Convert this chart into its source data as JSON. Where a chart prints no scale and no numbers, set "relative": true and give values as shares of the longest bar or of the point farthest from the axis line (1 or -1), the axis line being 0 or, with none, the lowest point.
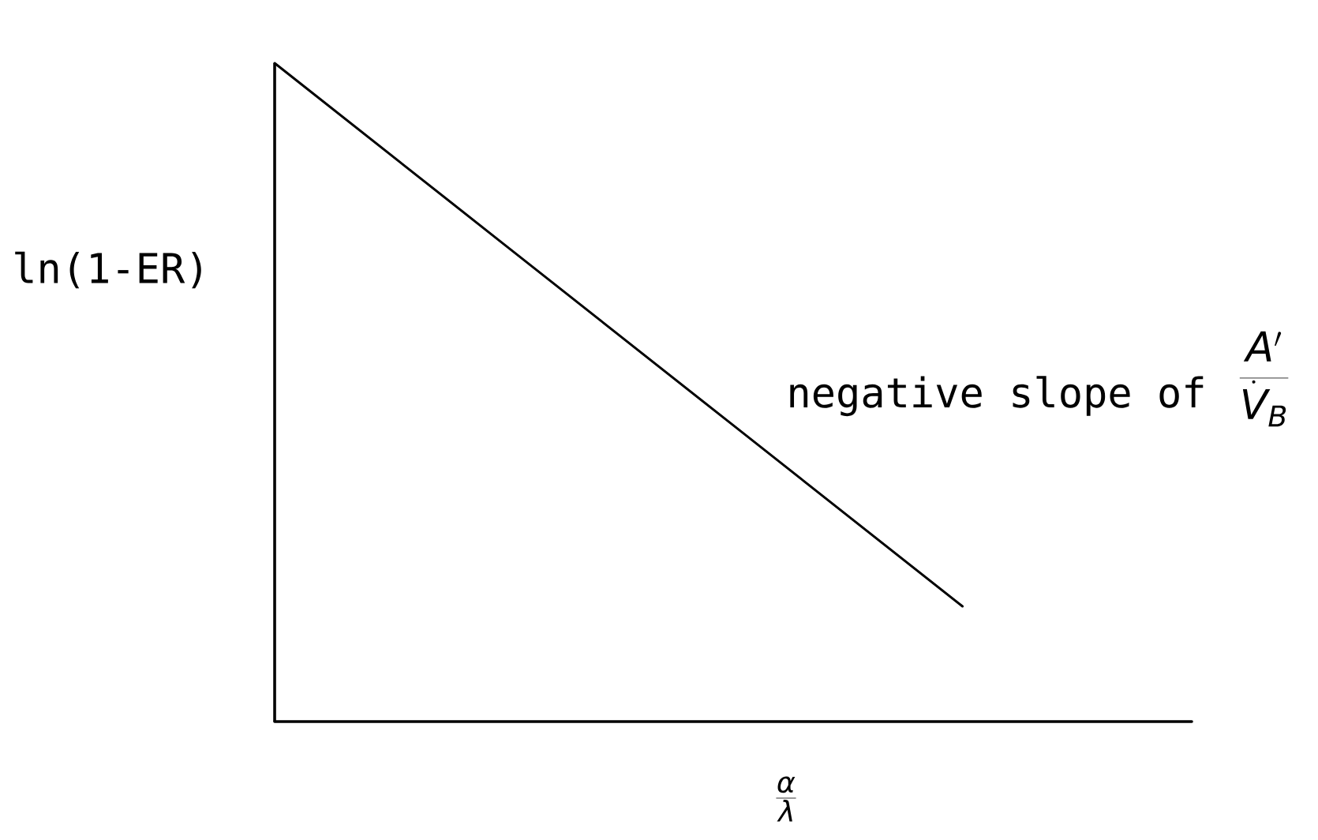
{
  "chart_data": {
    "type": "line",
    "ylabel": "ln(1-ER)",
    "xlabel": "\\frac{\\alpha}{\\lambda}",
    "annotations": [
      "negative slope of",
      "\\frac{A'}{\\dot{V}_B}"
    ],
    "categories": [
      null,
      null,
      null,
      null,
      null
    ],
    "relative": true,
    "series": [
      {
        "color": "#000000",
        "values": [
          1,
          0.725,
          0.45,
          0.175,
          null
        ]
      }
    ],
    "ref_lines": [
      {
        "axis": "y",
        "value": 0,
        "color": "#000000",
        "line_style": "solid"
      }
    ],
    "marker": "none",
    "line_style": "solid"
  }
}
